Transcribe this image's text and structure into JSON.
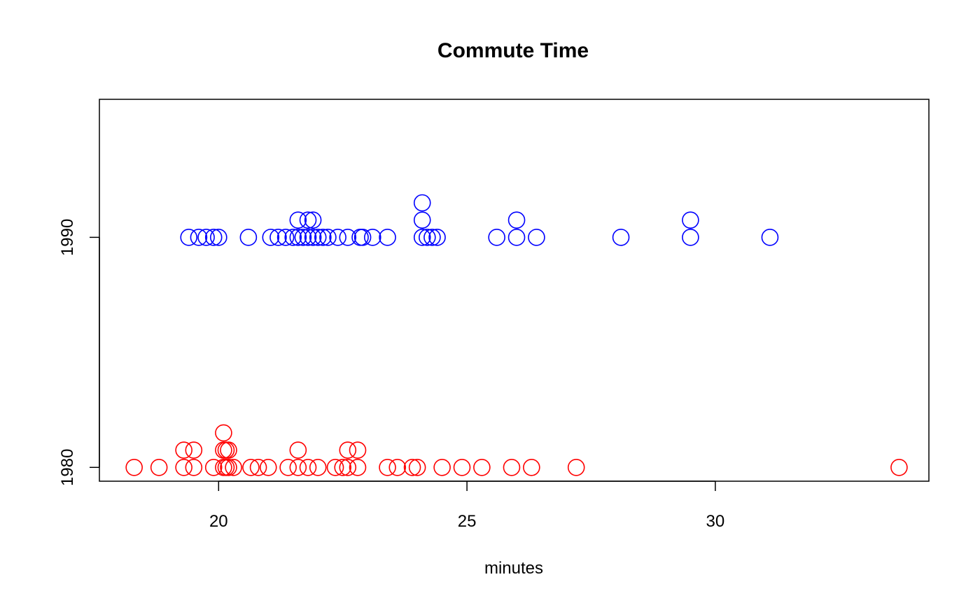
{
  "chart_data": {
    "type": "scatter",
    "subtype": "stripchart-stacked",
    "title": "Commute Time",
    "xlabel": "minutes",
    "ylabel": "",
    "xlim": [
      17.6,
      34.3
    ],
    "ylim": [
      1979.4,
      1996.0
    ],
    "x_ticks": [
      20,
      25,
      30
    ],
    "y_ticks": [
      1980,
      1990
    ],
    "stack_offset": 0.75,
    "series": [
      {
        "name": "1980",
        "color": "#ff0000",
        "y": 1980,
        "values": [
          18.3,
          18.8,
          19.3,
          19.3,
          19.5,
          19.5,
          19.9,
          20.1,
          20.1,
          20.1,
          20.15,
          20.15,
          20.2,
          20.2,
          20.3,
          20.65,
          20.8,
          21.0,
          21.4,
          21.6,
          21.6,
          21.8,
          22.0,
          22.35,
          22.5,
          22.6,
          22.6,
          22.8,
          22.8,
          23.4,
          23.6,
          23.9,
          24.0,
          24.5,
          24.9,
          25.3,
          25.9,
          26.3,
          27.2,
          33.7
        ]
      },
      {
        "name": "1990",
        "color": "#0000ff",
        "y": 1990,
        "values": [
          19.4,
          19.6,
          19.75,
          19.9,
          20.0,
          20.6,
          21.05,
          21.2,
          21.35,
          21.5,
          21.6,
          21.6,
          21.7,
          21.8,
          21.8,
          21.9,
          21.9,
          22.0,
          22.1,
          22.2,
          22.4,
          22.6,
          22.85,
          22.9,
          23.1,
          23.4,
          24.1,
          24.1,
          24.1,
          24.2,
          24.3,
          24.4,
          25.6,
          26.0,
          26.0,
          26.4,
          28.1,
          29.5,
          29.5,
          31.1
        ]
      }
    ]
  }
}
